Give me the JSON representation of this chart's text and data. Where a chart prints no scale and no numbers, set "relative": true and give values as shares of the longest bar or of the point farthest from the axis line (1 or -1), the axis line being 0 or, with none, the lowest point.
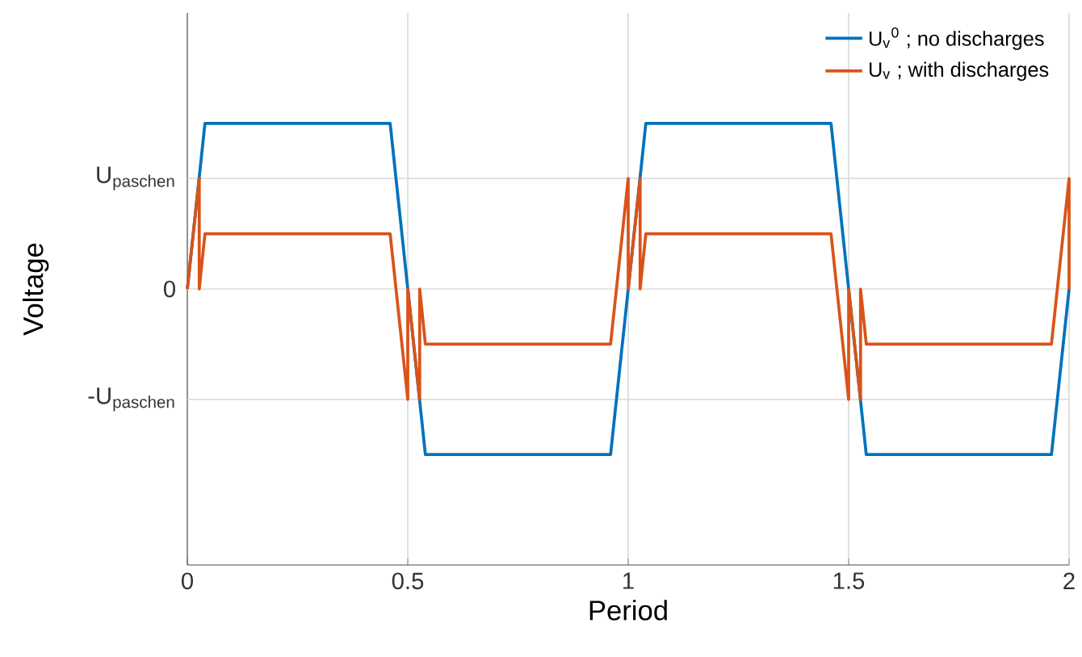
{
  "chart_data": {
    "type": "line",
    "relative": true,
    "xlabel": "Period",
    "ylabel": "Voltage",
    "xlim": [
      0,
      2
    ],
    "xticks": [
      0,
      0.5,
      1,
      1.5,
      2
    ],
    "ref_lines": [
      {
        "axis": "y",
        "value": -0.667,
        "label": "-U$_{paschen}$",
        "color": "#dddddd"
      },
      {
        "axis": "y",
        "value": 0,
        "label": "0",
        "color": "#dddddd"
      },
      {
        "axis": "y",
        "value": 0.667,
        "label": "U$_{paschen}$",
        "color": "#dddddd"
      }
    ],
    "grid": "x",
    "legend": "top right",
    "series": [
      {
        "name": "U$_{v}$$^{0}$ ; no discharges",
        "color": "#0072bd",
        "x": [
          0,
          0.04,
          0.46,
          0.54,
          0.96,
          1.04,
          1.46,
          1.54,
          1.96,
          2
        ],
        "values": [
          0,
          1,
          1,
          -1,
          -1,
          1,
          1,
          -1,
          -1,
          0
        ]
      },
      {
        "name": "U$_{v}$ ; with discharges",
        "color": "#d95319",
        "x": [
          0,
          0.027,
          0.027,
          0.04,
          0.46,
          0.5,
          0.5,
          0.527,
          0.527,
          0.54,
          0.96,
          1.0,
          1.0,
          1.027,
          1.027,
          1.04,
          1.46,
          1.5,
          1.5,
          1.527,
          1.527,
          1.54,
          1.96,
          2,
          2
        ],
        "values": [
          0,
          0.667,
          0,
          0.333,
          0.333,
          -0.667,
          0,
          -0.667,
          0,
          -0.333,
          -0.333,
          0.667,
          0,
          0.667,
          0,
          0.333,
          0.333,
          -0.667,
          0,
          -0.667,
          0,
          -0.333,
          -0.333,
          0.667,
          0
        ]
      }
    ]
  }
}
